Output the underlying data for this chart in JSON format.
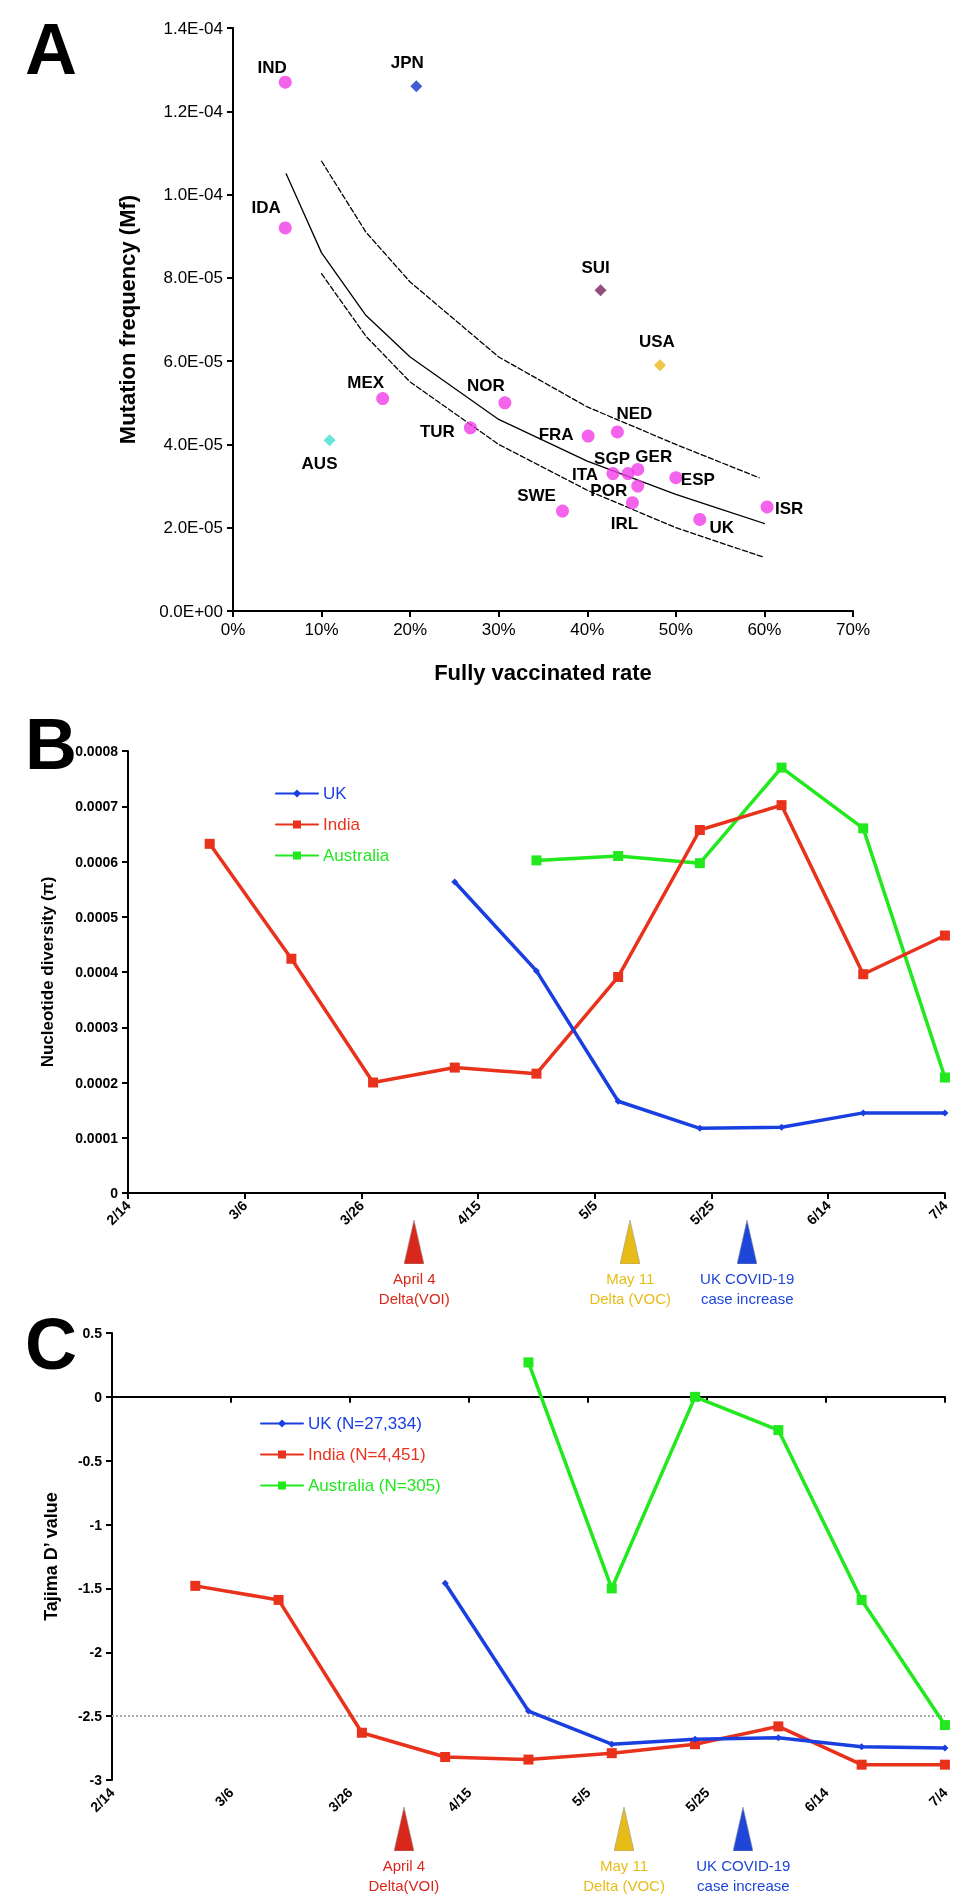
{
  "chart_data": [
    {
      "type": "scatter",
      "title": "A",
      "xlabel": "Fully vaccinated rate",
      "ylabel": "Mutation frequency (Mf)",
      "xlim": [
        0,
        70
      ],
      "xticks": [
        {
          "value": 0,
          "label": "0%"
        },
        {
          "value": 10,
          "label": "10%"
        },
        {
          "value": 20,
          "label": "20%"
        },
        {
          "value": 30,
          "label": "30%"
        },
        {
          "value": 40,
          "label": "40%"
        },
        {
          "value": 50,
          "label": "50%"
        },
        {
          "value": 60,
          "label": "60%"
        },
        {
          "value": 70,
          "label": "70%"
        }
      ],
      "ylim": [
        0,
        0.00014
      ],
      "yticks": [
        {
          "value": 0,
          "label": "0.0E+00"
        },
        {
          "value": 2e-05,
          "label": "2.0E-05"
        },
        {
          "value": 4e-05,
          "label": "4.0E-05"
        },
        {
          "value": 6e-05,
          "label": "6.0E-05"
        },
        {
          "value": 8e-05,
          "label": "8.0E-05"
        },
        {
          "value": 0.0001,
          "label": "1.0E-04"
        },
        {
          "value": 0.00012,
          "label": "1.2E-04"
        },
        {
          "value": 0.00014,
          "label": "1.4E-04"
        }
      ],
      "series": [
        {
          "type": "line",
          "marker": "none",
          "line_style": "solid",
          "color": "#000000",
          "x": [
            6,
            10,
            15,
            20,
            30,
            40,
            50,
            60
          ],
          "values": [
            0.000105,
            8.6e-05,
            7.1e-05,
            6.1e-05,
            4.6e-05,
            3.6e-05,
            2.8e-05,
            2.1e-05
          ]
        },
        {
          "type": "line",
          "marker": "none",
          "line_style": "dashed",
          "color": "#000000",
          "x": [
            10,
            15,
            20,
            30,
            40,
            50,
            59.4
          ],
          "values": [
            0.000108,
            9.1e-05,
            7.9e-05,
            6.1e-05,
            4.9e-05,
            4e-05,
            3.2e-05
          ]
        },
        {
          "type": "line",
          "marker": "none",
          "line_style": "dashed",
          "color": "#000000",
          "x": [
            10,
            15,
            20,
            30,
            40,
            50,
            59.8
          ],
          "values": [
            8.1e-05,
            6.6e-05,
            5.5e-05,
            4e-05,
            2.9e-05,
            2e-05,
            1.3e-05
          ]
        },
        {
          "marker": "circle",
          "color": "#f03ce6",
          "x": [
            5.9,
            5.9,
            16.9,
            26.8,
            30.7,
            40.1,
            43.4,
            42.9,
            44.6,
            45.7,
            45.7,
            50.0,
            37.2,
            45.1,
            52.7,
            60.3
          ],
          "values": [
            0.000127,
            9.2e-05,
            5.1e-05,
            4.4e-05,
            5e-05,
            4.2e-05,
            4.3e-05,
            3.3e-05,
            3.3e-05,
            3.4e-05,
            3e-05,
            3.2e-05,
            2.4e-05,
            2.6e-05,
            2.2e-05,
            2.5e-05
          ]
        },
        {
          "marker": "diamond",
          "color": "#1034c8",
          "x": [
            20.7
          ],
          "values": [
            0.000126
          ]
        },
        {
          "marker": "diamond",
          "color": "#40e0d0",
          "x": [
            10.9
          ],
          "values": [
            4.1e-05
          ]
        },
        {
          "marker": "diamond",
          "color": "#7a1f5e",
          "x": [
            41.5
          ],
          "values": [
            7.7e-05
          ]
        },
        {
          "marker": "diamond",
          "color": "#e8b818",
          "x": [
            48.2
          ],
          "values": [
            5.9e-05
          ]
        }
      ],
      "annotations": [
        {
          "text": "IND",
          "x": 5.9,
          "y": 0.000127
        },
        {
          "text": "JPN",
          "x": 20.7,
          "y": 0.000126
        },
        {
          "text": "IDA",
          "x": 5.9,
          "y": 9.2e-05
        },
        {
          "text": "MEX",
          "x": 16.9,
          "y": 5.1e-05
        },
        {
          "text": "AUS",
          "x": 10.9,
          "y": 4.1e-05
        },
        {
          "text": "TUR",
          "x": 26.8,
          "y": 4.4e-05
        },
        {
          "text": "NOR",
          "x": 30.7,
          "y": 5e-05
        },
        {
          "text": "SUI",
          "x": 41.5,
          "y": 7.7e-05
        },
        {
          "text": "USA",
          "x": 48.2,
          "y": 5.9e-05
        },
        {
          "text": "FRA",
          "x": 40.1,
          "y": 4.2e-05
        },
        {
          "text": "NED",
          "x": 43.4,
          "y": 4.3e-05
        },
        {
          "text": "ITA",
          "x": 42.9,
          "y": 3.3e-05
        },
        {
          "text": "SGP",
          "x": 44.6,
          "y": 3.3e-05
        },
        {
          "text": "GER",
          "x": 45.7,
          "y": 3.4e-05
        },
        {
          "text": "POR",
          "x": 45.7,
          "y": 3e-05
        },
        {
          "text": "ESP",
          "x": 50.0,
          "y": 3.2e-05
        },
        {
          "text": "SWE",
          "x": 37.2,
          "y": 2.4e-05
        },
        {
          "text": "IRL",
          "x": 45.1,
          "y": 2.6e-05
        },
        {
          "text": "UK",
          "x": 52.7,
          "y": 2.2e-05
        },
        {
          "text": "ISR",
          "x": 60.3,
          "y": 2.5e-05
        }
      ]
    },
    {
      "type": "line",
      "title": "B",
      "ylabel": "Nucleotide diversity (π)",
      "x": [
        "--02-28",
        "--03-14",
        "--03-28",
        "--04-11",
        "--04-25",
        "--05-09",
        "--05-23",
        "--06-06",
        "--06-20",
        "--07-04"
      ],
      "xlim": [
        "--02-14",
        "--07-04"
      ],
      "xticks": [
        {
          "value": "--02-14",
          "label": "2/14"
        },
        {
          "value": "--03-06",
          "label": "3/6"
        },
        {
          "value": "--03-26",
          "label": "3/26"
        },
        {
          "value": "--04-15",
          "label": "4/15"
        },
        {
          "value": "--05-05",
          "label": "5/5"
        },
        {
          "value": "--05-25",
          "label": "5/25"
        },
        {
          "value": "--06-14",
          "label": "6/14"
        },
        {
          "value": "--07-04",
          "label": "7/4"
        }
      ],
      "ylim": [
        0,
        0.0008
      ],
      "yticks": [
        0,
        0.0001,
        0.0002,
        0.0003,
        0.0004,
        0.0005,
        0.0006,
        0.0007,
        0.0008
      ],
      "legend": "top left",
      "series": [
        {
          "name": "UK",
          "marker": "diamond",
          "color": "#1a3fe0",
          "values": [
            null,
            null,
            null,
            0.000563,
            0.000402,
            0.000166,
            0.000117,
            0.000119,
            0.000145,
            0.000145
          ]
        },
        {
          "name": "India",
          "marker": "square",
          "color": "#e8321c",
          "values": [
            0.000632,
            0.000424,
            0.0002,
            0.000227,
            0.000216,
            0.000391,
            0.000657,
            0.000702,
            0.000396,
            0.000466
          ]
        },
        {
          "name": "Australia",
          "marker": "square",
          "color": "#22e81e",
          "values": [
            null,
            null,
            null,
            null,
            0.000602,
            0.00061,
            0.000597,
            0.00077,
            0.00066,
            0.000209
          ]
        }
      ],
      "annotations": [
        "April 4\nDelta(VOI)",
        "May 11\nDelta (VOC)",
        "UK COVID-19\ncase increase"
      ]
    },
    {
      "type": "line",
      "title": "C",
      "ylabel": "Tajima D’ value",
      "x": [
        "--02-28",
        "--03-14",
        "--03-28",
        "--04-11",
        "--04-25",
        "--05-09",
        "--05-23",
        "--06-06",
        "--06-20",
        "--07-04"
      ],
      "xlim": [
        "--02-14",
        "--07-04"
      ],
      "xticks": [
        {
          "value": "--02-14",
          "label": "2/14"
        },
        {
          "value": "--03-06",
          "label": "3/6"
        },
        {
          "value": "--03-26",
          "label": "3/26"
        },
        {
          "value": "--04-15",
          "label": "4/15"
        },
        {
          "value": "--05-05",
          "label": "5/5"
        },
        {
          "value": "--05-25",
          "label": "5/25"
        },
        {
          "value": "--06-14",
          "label": "6/14"
        },
        {
          "value": "--07-04",
          "label": "7/4"
        }
      ],
      "ylim": [
        -3,
        0.5
      ],
      "yticks": [
        -3,
        -2.5,
        -2,
        -1.5,
        -1,
        -0.5,
        0,
        0.5
      ],
      "legend": "top left",
      "ref_lines": [
        {
          "axis": "y",
          "value": -2.5,
          "color": "#a8a8a8",
          "line_style": "dotted"
        }
      ],
      "series": [
        {
          "name": "UK (N=27,334)",
          "marker": "diamond",
          "color": "#1a3fe0",
          "values": [
            null,
            null,
            null,
            -1.46,
            -2.46,
            -2.72,
            -2.68,
            -2.67,
            -2.74,
            -2.75
          ]
        },
        {
          "name": "India (N=4,451)",
          "marker": "square",
          "color": "#e8321c",
          "values": [
            -1.48,
            -1.59,
            -2.63,
            -2.82,
            -2.84,
            -2.79,
            -2.72,
            -2.58,
            -2.88,
            -2.88
          ]
        },
        {
          "name": "Australia (N=305)",
          "marker": "square",
          "color": "#22e81e",
          "values": [
            null,
            null,
            null,
            null,
            0.27,
            -1.5,
            0,
            -0.26,
            -1.59,
            -2.57
          ]
        }
      ],
      "annotations": [
        "April 4\nDelta(VOI)",
        "May 11\nDelta (VOC)",
        "UK COVID-19\ncase increase"
      ]
    }
  ]
}
